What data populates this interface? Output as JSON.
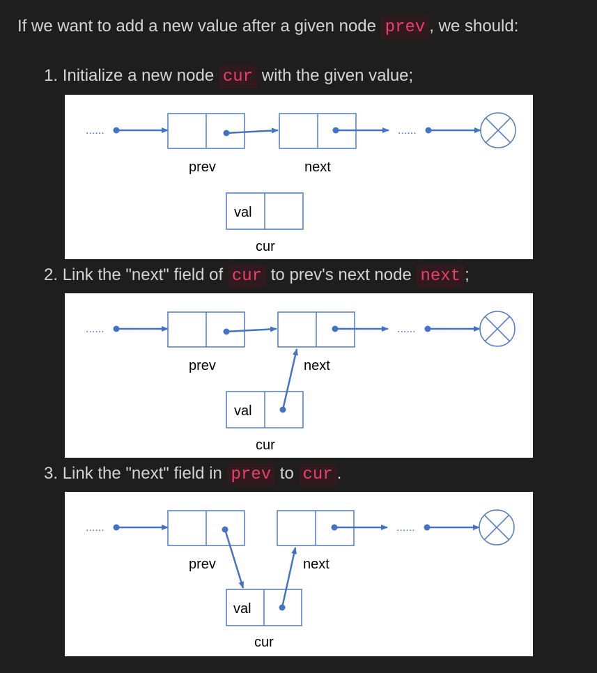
{
  "intro": {
    "before": "If we want to add a new value after a given node ",
    "code": "prev",
    "after": ", we should:"
  },
  "steps": [
    {
      "number": "1.",
      "parts": [
        {
          "text": "Initialize a new node "
        },
        {
          "code": "cur"
        },
        {
          "text": " with the given value;"
        }
      ]
    },
    {
      "number": "2.",
      "parts": [
        {
          "text": "Link the \"next\" field of "
        },
        {
          "code": "cur"
        },
        {
          "text": " to prev's next node "
        },
        {
          "code": "next"
        },
        {
          "text": ";"
        }
      ]
    },
    {
      "number": "3.",
      "parts": [
        {
          "text": "Link the \"next\" field in "
        },
        {
          "code": "prev"
        },
        {
          "text": " to "
        },
        {
          "code": "cur"
        },
        {
          "text": "."
        }
      ]
    }
  ],
  "diagram_labels": {
    "ellipsis": "......",
    "prev": "prev",
    "next": "next",
    "val": "val",
    "cur": "cur"
  },
  "colors": {
    "background": "#1e1e1e",
    "text": "#d4d4d4",
    "code_text": "#ea3f6a",
    "code_bg": "#301a20",
    "node_stroke": "#4f7ac6",
    "arrow": "#4472c4",
    "diagram_bg": "#ffffff"
  },
  "icons": {
    "null_terminator": "circled-x-icon"
  }
}
